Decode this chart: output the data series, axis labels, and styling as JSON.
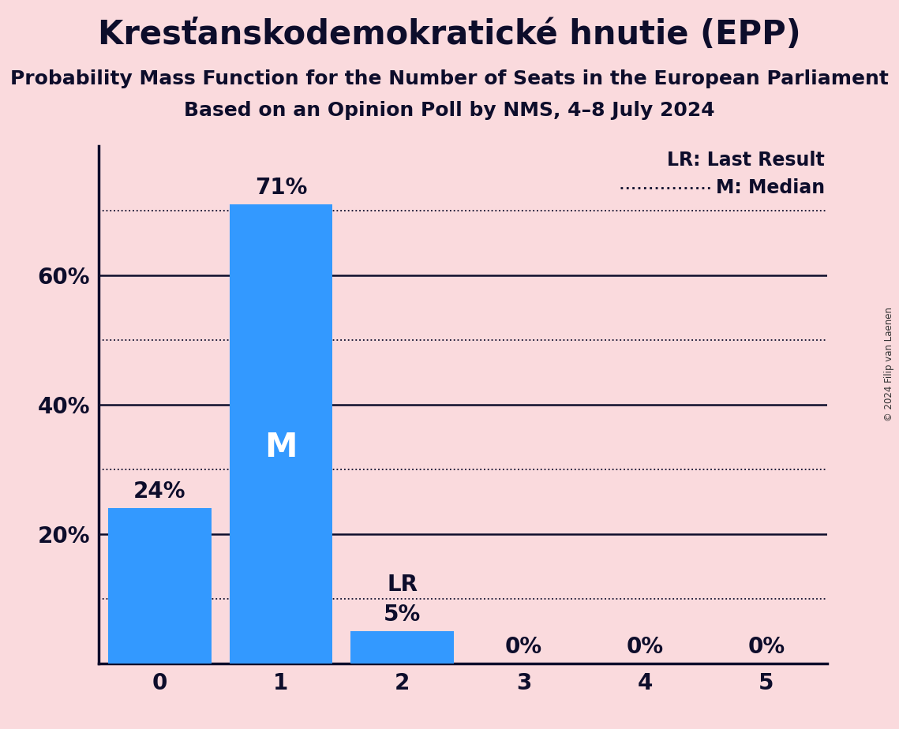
{
  "title": "Kresťanskodemokratické hnutie (EPP)",
  "subtitle1": "Probability Mass Function for the Number of Seats in the European Parliament",
  "subtitle2": "Based on an Opinion Poll by NMS, 4–8 July 2024",
  "copyright": "© 2024 Filip van Laenen",
  "categories": [
    0,
    1,
    2,
    3,
    4,
    5
  ],
  "values": [
    0.24,
    0.71,
    0.05,
    0.0,
    0.0,
    0.0
  ],
  "bar_color": "#3399FF",
  "background_color": "#FADADD",
  "bar_labels": [
    "24%",
    "71%",
    "5%",
    "0%",
    "0%",
    "0%"
  ],
  "median_seat": 1,
  "lr_seat": 2,
  "median_label": "M",
  "lr_label": "LR",
  "legend_lr": "LR: Last Result",
  "legend_m": "M: Median",
  "ylabel_ticks": [
    "20%",
    "40%",
    "60%"
  ],
  "yticks": [
    0.2,
    0.4,
    0.6
  ],
  "title_fontsize": 30,
  "subtitle_fontsize": 18,
  "label_fontsize": 18,
  "tick_fontsize": 20,
  "legend_fontsize": 17,
  "bar_label_fontsize": 20,
  "dotted_gridlines": [
    0.1,
    0.3,
    0.5,
    0.7
  ],
  "solid_gridlines": [
    0.2,
    0.4,
    0.6
  ],
  "ylim": [
    0,
    0.8
  ],
  "xlim": [
    -0.5,
    5.5
  ],
  "text_color": "#0d0d2b"
}
